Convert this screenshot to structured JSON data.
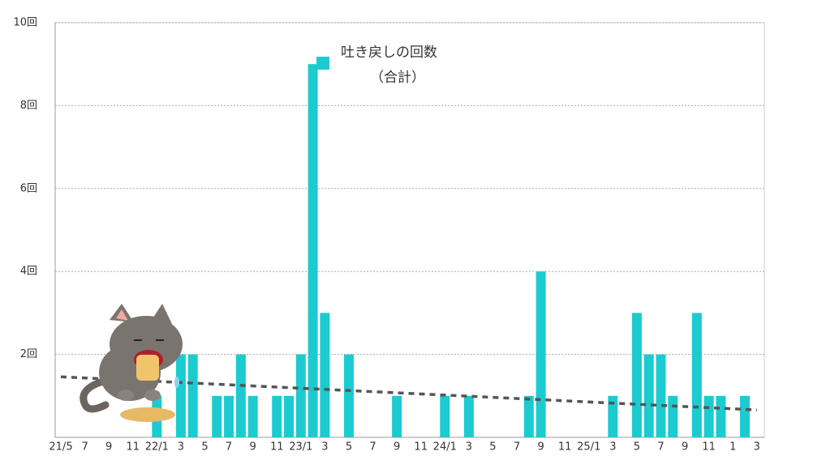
{
  "chart_data": {
    "type": "bar",
    "series": [
      {
        "name": "吐き戻しの回数",
        "color": "#1ccbd0",
        "values": [
          0,
          0,
          0,
          0,
          0,
          0,
          0,
          0,
          1,
          0,
          2,
          2,
          0,
          1,
          1,
          2,
          1,
          0,
          1,
          1,
          2,
          9,
          3,
          0,
          2,
          0,
          0,
          0,
          1,
          0,
          0,
          0,
          1,
          0,
          1,
          0,
          0,
          0,
          0,
          1,
          4,
          0,
          0,
          0,
          0,
          0,
          1,
          0,
          3,
          2,
          2,
          1,
          0,
          3,
          1,
          1,
          0,
          1,
          0
        ]
      }
    ],
    "legend_subtitle": "（合計）",
    "categories": [
      "21/5",
      null,
      "7",
      null,
      "9",
      null,
      "11",
      null,
      "22/1",
      null,
      "3",
      null,
      "5",
      null,
      "7",
      null,
      "9",
      null,
      "11",
      null,
      "23/1",
      null,
      "3",
      null,
      "5",
      null,
      "7",
      null,
      "9",
      null,
      "11",
      null,
      "24/1",
      null,
      "3",
      null,
      "5",
      null,
      "7",
      null,
      "9",
      null,
      "11",
      null,
      "25/1",
      null,
      "3",
      null,
      "5",
      null,
      "7",
      null,
      "9",
      null,
      "11",
      null,
      "1",
      null,
      "3"
    ],
    "ylim": [
      0,
      10
    ],
    "yticks": [
      {
        "value": 2,
        "label": "2回"
      },
      {
        "value": 4,
        "label": "4回"
      },
      {
        "value": 6,
        "label": "6回"
      },
      {
        "value": 8,
        "label": "8回"
      },
      {
        "value": 10,
        "label": "10回"
      }
    ],
    "grid": true,
    "trend_line": {
      "start": 1.46,
      "end": 0.66,
      "color": "#555555"
    }
  }
}
